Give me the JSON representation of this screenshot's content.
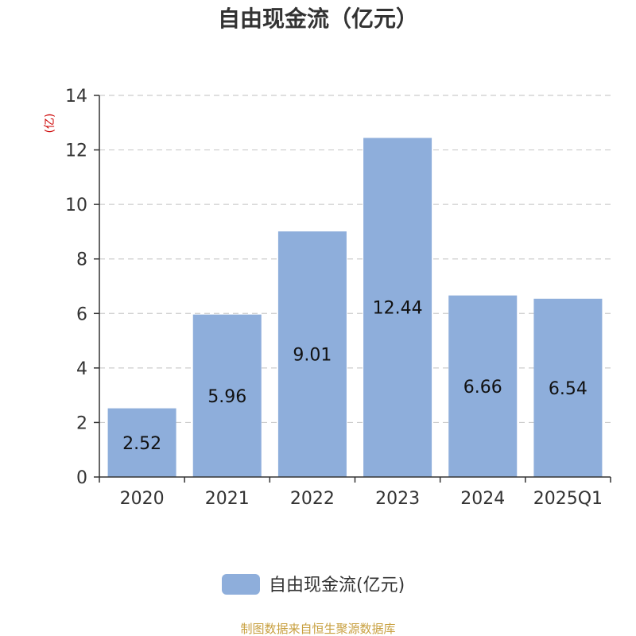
{
  "chart_data": {
    "type": "bar",
    "title": "自由现金流（亿元）",
    "ylabel": "(亿)",
    "categories": [
      "2020",
      "2021",
      "2022",
      "2023",
      "2024",
      "2025Q1"
    ],
    "series": [
      {
        "name": "自由现金流(亿元)",
        "values": [
          2.52,
          5.96,
          9.01,
          12.44,
          6.66,
          6.54
        ]
      }
    ],
    "ylim": [
      0,
      14
    ],
    "yticks": [
      0,
      2,
      4,
      6,
      8,
      10,
      12,
      14
    ],
    "grid": true,
    "legend_position": "bottom",
    "data_labels": [
      "2.52",
      "5.96",
      "9.01",
      "12.44",
      "6.66",
      "6.54"
    ]
  },
  "colors": {
    "bar": "#8eaedb",
    "unit_label": "#cc0000",
    "source": "#c8a040",
    "grid": "#cccccc",
    "axis": "#333333"
  },
  "footer": {
    "source": "制图数据来自恒生聚源数据库"
  }
}
